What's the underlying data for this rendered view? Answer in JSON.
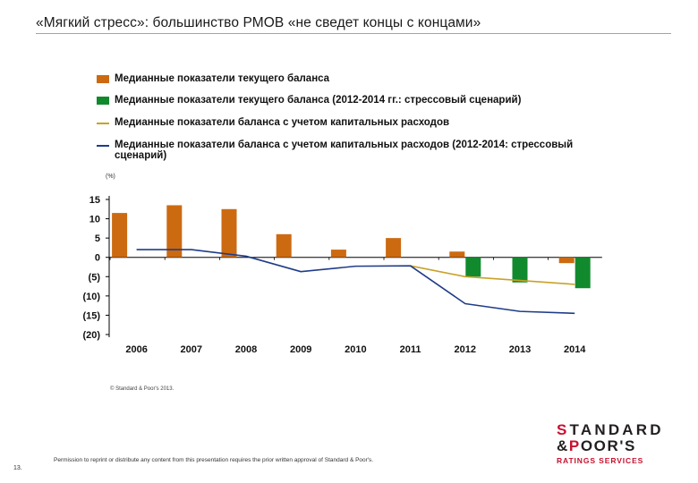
{
  "header": {
    "title": "«Мягкий стресс»: большинство РМОВ «не сведет концы с концами»"
  },
  "chart_data": {
    "type": "bar",
    "title": "",
    "unit_label": "(%)",
    "categories": [
      "2006",
      "2007",
      "2008",
      "2009",
      "2010",
      "2011",
      "2012",
      "2013",
      "2014"
    ],
    "ylim": [
      -20,
      15
    ],
    "y_ticks": [
      {
        "value": 15,
        "label": "15"
      },
      {
        "value": 10,
        "label": "10"
      },
      {
        "value": 5,
        "label": "5"
      },
      {
        "value": 0,
        "label": "0"
      },
      {
        "value": -5,
        "label": "(5)"
      },
      {
        "value": -10,
        "label": "(10)"
      },
      {
        "value": -15,
        "label": "(15)"
      },
      {
        "value": -20,
        "label": "(20)"
      }
    ],
    "series": [
      {
        "name": "Медианные показатели текущего баланса",
        "type": "bar",
        "color": "#cc6a12",
        "values": [
          11.5,
          13.5,
          12.5,
          6,
          2,
          5,
          1.5,
          null,
          -1.5
        ]
      },
      {
        "name": "Медианные показатели текущего баланса (2012-2014 гг.: стрессовый сценарий)",
        "type": "bar",
        "color": "#118a2e",
        "values": [
          null,
          null,
          null,
          null,
          null,
          null,
          -5,
          -6.5,
          -8
        ]
      },
      {
        "name": "Медианные показатели баланса с учетом капитальных расходов",
        "type": "line",
        "color": "#c9a227",
        "values": [
          null,
          null,
          null,
          null,
          null,
          -2.2,
          -5,
          -6,
          -7
        ]
      },
      {
        "name": "Медианные показатели баланса с учетом капитальных расходов (2012-2014: стрессовый сценарий)",
        "type": "line",
        "color": "#1f3c88",
        "values": [
          2,
          2,
          0.3,
          -3.7,
          -2.3,
          -2.2,
          -12,
          -14,
          -14.5
        ]
      }
    ]
  },
  "footer": {
    "copyright_small": "© Standard & Poor's 2013.",
    "permission": "Permission to reprint or distribute any content from this presentation requires the prior written approval of Standard & Poor's.",
    "page_number": "13.",
    "logo_line1_accent": "S",
    "logo_line1_rest": "TANDARD",
    "logo_line2_amp": "&",
    "logo_line2_accent": "P",
    "logo_line2_rest": "OOR'S",
    "logo_sub": "RATINGS SERVICES"
  }
}
